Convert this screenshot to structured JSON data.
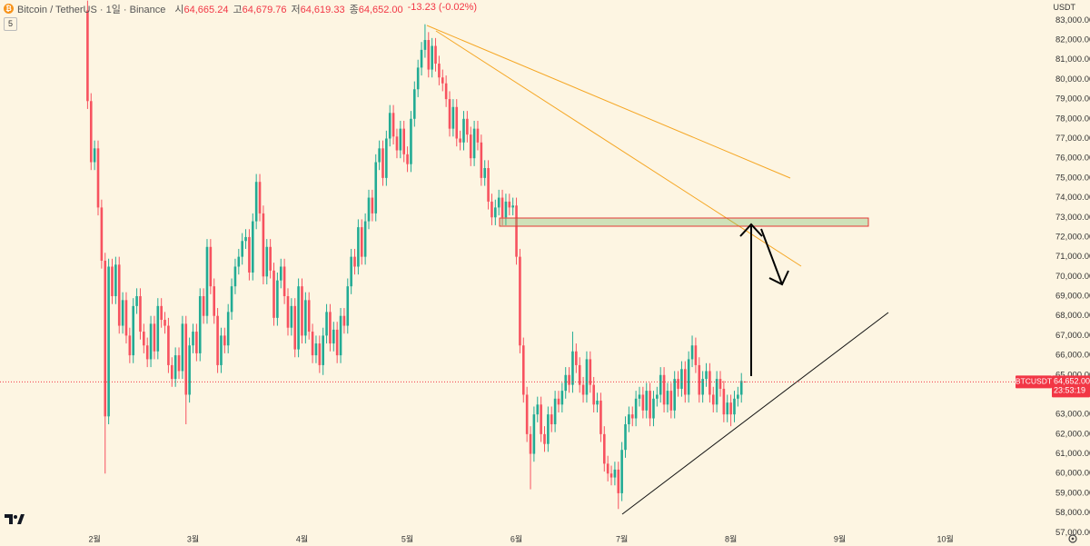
{
  "header": {
    "title": "Bitcoin / TetherUS · 1일 · Binance",
    "ohlc": [
      {
        "label": "시",
        "value": "64,665.24"
      },
      {
        "label": "고",
        "value": "64,679.76"
      },
      {
        "label": "저",
        "value": "64,619.33"
      },
      {
        "label": "종",
        "value": "64,652.00"
      }
    ],
    "change": "-13.23 (-0.02%)",
    "badge": "5",
    "currency": "USDT"
  },
  "chart_data": {
    "type": "candlestick",
    "categories": [
      null,
      null,
      "2월",
      null,
      null,
      null,
      null,
      null,
      null,
      null,
      null,
      null,
      null,
      null,
      null,
      null,
      null,
      null,
      null,
      null,
      null,
      null,
      null,
      null,
      null,
      null,
      null,
      null,
      null,
      null,
      "3월",
      null,
      null,
      null,
      null,
      null,
      null,
      null,
      null,
      null,
      null,
      null,
      null,
      null,
      null,
      null,
      null,
      null,
      null,
      null,
      null,
      null,
      null,
      null,
      null,
      null,
      null,
      null,
      null,
      null,
      null,
      "4월",
      null,
      null,
      null,
      null,
      null,
      null,
      null,
      null,
      null,
      null,
      null,
      null,
      null,
      null,
      null,
      null,
      null,
      null,
      null,
      null,
      null,
      null,
      null,
      null,
      null,
      null,
      null,
      null,
      null,
      "5월",
      null,
      null,
      null,
      null,
      null,
      null,
      null,
      null,
      null,
      null,
      null,
      null,
      null,
      null,
      null,
      null,
      null,
      null,
      null,
      null,
      null,
      null,
      null,
      null,
      null,
      null,
      null,
      null,
      null,
      null,
      "6월",
      null,
      null,
      null,
      null,
      null,
      null,
      null,
      null,
      null,
      null,
      null,
      null,
      null,
      null,
      null,
      null,
      null,
      null,
      null,
      null,
      null,
      null,
      null,
      null,
      null,
      null,
      null,
      null,
      null,
      "7월",
      null,
      null,
      null,
      null,
      null,
      null,
      null,
      null,
      null,
      null,
      null,
      null,
      null,
      null,
      null,
      null,
      null,
      null,
      null,
      null,
      null,
      null,
      null,
      null,
      null,
      null,
      null,
      null,
      null,
      null,
      "8월",
      null,
      null,
      null,
      null,
      null,
      null,
      null,
      null,
      null,
      null,
      null,
      null,
      null,
      null,
      null,
      null,
      null,
      null,
      null,
      null,
      null,
      null,
      null,
      null,
      null,
      null,
      null,
      null,
      null,
      null,
      "9월",
      null,
      null,
      null,
      null,
      null,
      null,
      null,
      null,
      null,
      null,
      null,
      null,
      null,
      null,
      null,
      null,
      null,
      null,
      null,
      null,
      null,
      null,
      null,
      null,
      null,
      null,
      null,
      null,
      null,
      "10월"
    ],
    "open": [
      83500,
      78900,
      75800,
      76500,
      73500,
      70800,
      62900,
      70500,
      69000,
      70600,
      67500,
      68800,
      67000,
      66000,
      68500,
      69000,
      67200,
      66500,
      65800,
      67600,
      66200,
      68500,
      67800,
      67500,
      65500,
      64800,
      66000,
      65200,
      67600,
      64000,
      66500,
      67200,
      66100,
      69000,
      68000,
      71500,
      69500,
      68000,
      65500,
      67000,
      66500,
      68200,
      69500,
      70500,
      71000,
      71800,
      72000,
      70200,
      72800,
      74800,
      73200,
      70000,
      71500,
      70300,
      67900,
      69800,
      70500,
      69000,
      67400,
      68500,
      66300,
      69500,
      67000,
      68800,
      67200,
      66000,
      66600,
      65500,
      67000,
      68200,
      66600,
      67300,
      66000,
      68000,
      67500,
      69500,
      71000,
      70500,
      72500,
      71000,
      72800,
      74000,
      73200,
      75800,
      76500,
      75000,
      77000,
      78300,
      77100,
      76400,
      77500,
      76200,
      75700,
      78000,
      79500,
      80600,
      81500,
      82000,
      80500,
      81700,
      80800,
      80100,
      79800,
      79000,
      77500,
      78600,
      77000,
      76800,
      78000,
      77200,
      76000,
      77500,
      76800,
      75000,
      75500,
      73800,
      73000,
      73500,
      74000,
      73000,
      73800,
      73500,
      73600,
      71000,
      66500,
      64000,
      62000,
      61000,
      63000,
      63500,
      62000,
      61500,
      63000,
      62500,
      63800,
      63500,
      64200,
      65000,
      64500,
      66200,
      65500,
      64500,
      64000,
      65800,
      64500,
      63500,
      63700,
      62000,
      60500,
      60000,
      59800,
      60200,
      59000,
      61200,
      62500,
      63000,
      62800,
      63800,
      64000,
      63200,
      64200,
      62800,
      63800,
      64000,
      65000,
      63500,
      64200,
      63200,
      64800,
      64300,
      65300,
      64000,
      65800,
      66500,
      65500,
      64000,
      64800,
      65200,
      64000,
      63500,
      64800,
      64300,
      63000,
      63600,
      63000,
      63800,
      64000,
      64665.24,
      null,
      null,
      null,
      null,
      null,
      null,
      null,
      null,
      null,
      null,
      null,
      null,
      null,
      null,
      null,
      null,
      null,
      null,
      null,
      null,
      null,
      null,
      null,
      null,
      null,
      null,
      null,
      null,
      null,
      null,
      null,
      null,
      null,
      null,
      null,
      null,
      null,
      null,
      null,
      null,
      null,
      null,
      null,
      null,
      null,
      null,
      null,
      null,
      null,
      null,
      null,
      null,
      null,
      null,
      null,
      null,
      null
    ],
    "high": [
      84000,
      79300,
      76900,
      76900,
      73900,
      71200,
      70900,
      70900,
      71000,
      71000,
      69200,
      69200,
      67400,
      68900,
      69400,
      69400,
      67600,
      66900,
      68000,
      68000,
      68900,
      68900,
      68200,
      67900,
      65900,
      66400,
      66400,
      68000,
      68000,
      66900,
      67600,
      67600,
      69400,
      69400,
      71900,
      71900,
      69900,
      68400,
      67400,
      67400,
      68600,
      69900,
      70900,
      71400,
      72200,
      72400,
      72400,
      73200,
      75200,
      75200,
      73600,
      71900,
      71900,
      70700,
      70200,
      70900,
      70900,
      69400,
      68900,
      68900,
      69900,
      69900,
      69200,
      69200,
      67600,
      67000,
      67000,
      67400,
      68600,
      68600,
      67700,
      67700,
      68400,
      68400,
      69900,
      71400,
      71400,
      72900,
      72900,
      73200,
      74400,
      74400,
      76200,
      76900,
      76900,
      77400,
      78700,
      78700,
      77500,
      77900,
      77900,
      76600,
      78400,
      79900,
      81000,
      81900,
      82800,
      82400,
      82100,
      82100,
      81200,
      80500,
      80200,
      79400,
      79000,
      79000,
      77400,
      78400,
      78400,
      77600,
      77900,
      77900,
      77200,
      75900,
      75900,
      74200,
      73900,
      74400,
      74400,
      74200,
      74200,
      74000,
      74000,
      71400,
      66900,
      64400,
      62400,
      63400,
      63900,
      63900,
      62400,
      63400,
      63400,
      64200,
      64200,
      64600,
      65400,
      65400,
      67200,
      66600,
      65900,
      64900,
      66200,
      66200,
      64900,
      64100,
      64100,
      62400,
      60900,
      60400,
      60600,
      60600,
      61600,
      62900,
      63400,
      63400,
      64200,
      64400,
      64400,
      64600,
      64600,
      64200,
      64400,
      65400,
      65400,
      64600,
      64600,
      65200,
      65200,
      65700,
      65700,
      66200,
      67000,
      66900,
      65900,
      65200,
      65600,
      65600,
      64400,
      65200,
      65200,
      64700,
      64000,
      64000,
      64200,
      64400,
      65100,
      64679.76,
      null,
      null,
      null,
      null,
      null,
      null,
      null,
      null,
      null,
      null,
      null,
      null,
      null,
      null,
      null,
      null,
      null,
      null,
      null,
      null,
      null,
      null,
      null,
      null,
      null,
      null,
      null,
      null,
      null,
      null,
      null,
      null,
      null,
      null,
      null,
      null,
      null,
      null,
      null,
      null,
      null,
      null,
      null,
      null,
      null,
      null,
      null,
      null,
      null,
      null,
      null,
      null,
      null,
      null,
      null,
      null,
      null
    ],
    "low": [
      78500,
      75400,
      75400,
      73100,
      70400,
      60000,
      62500,
      68600,
      68600,
      67100,
      67100,
      66600,
      65600,
      65600,
      68100,
      66800,
      66100,
      65400,
      65400,
      65800,
      65800,
      67400,
      67100,
      65100,
      64400,
      64400,
      64800,
      64800,
      62500,
      63600,
      66100,
      65700,
      65700,
      67600,
      67600,
      69100,
      67600,
      65100,
      65100,
      66100,
      66100,
      67800,
      69100,
      70100,
      70600,
      71400,
      69800,
      69800,
      72400,
      72800,
      69600,
      69600,
      69900,
      67500,
      67500,
      69400,
      68600,
      67000,
      67000,
      65900,
      65900,
      66600,
      66600,
      66800,
      65600,
      65600,
      65100,
      65000,
      66600,
      66200,
      66200,
      65600,
      65600,
      67100,
      67100,
      69100,
      70100,
      70100,
      70600,
      70600,
      72400,
      72800,
      72800,
      75400,
      74600,
      74600,
      76600,
      76700,
      76000,
      76000,
      75800,
      75300,
      75300,
      77600,
      79100,
      80200,
      81100,
      80100,
      80100,
      80400,
      79700,
      79400,
      78600,
      77100,
      77100,
      76600,
      76400,
      76400,
      76800,
      75600,
      75600,
      76400,
      74600,
      74600,
      73400,
      72600,
      72600,
      73100,
      72600,
      72600,
      73100,
      73100,
      70600,
      66100,
      63600,
      61600,
      59200,
      60600,
      62600,
      61600,
      61100,
      61100,
      62100,
      62100,
      63100,
      63100,
      63800,
      64100,
      64100,
      65100,
      64100,
      63600,
      63600,
      64100,
      63100,
      63100,
      61600,
      60100,
      59600,
      59400,
      59400,
      58200,
      58600,
      60800,
      62100,
      62400,
      62400,
      63400,
      62800,
      62800,
      62400,
      62400,
      63400,
      63600,
      63100,
      63100,
      62800,
      62800,
      63900,
      63900,
      63600,
      63600,
      65400,
      65100,
      63600,
      63600,
      64400,
      63600,
      63100,
      63100,
      63900,
      62600,
      62600,
      62400,
      62600,
      63400,
      63600,
      64619.33,
      null,
      null,
      null,
      null,
      null,
      null,
      null,
      null,
      null,
      null,
      null,
      null,
      null,
      null,
      null,
      null,
      null,
      null,
      null,
      null,
      null,
      null,
      null,
      null,
      null,
      null,
      null,
      null,
      null,
      null,
      null,
      null,
      null,
      null,
      null,
      null,
      null,
      null,
      null,
      null,
      null,
      null,
      null,
      null,
      null,
      null,
      null,
      null,
      null,
      null,
      null,
      null,
      null,
      null,
      null,
      null,
      null
    ],
    "close": [
      78900,
      75800,
      76500,
      73500,
      70800,
      62900,
      70500,
      69000,
      70600,
      67500,
      68800,
      67000,
      66000,
      68500,
      69000,
      67200,
      66500,
      65800,
      67600,
      66200,
      68500,
      67800,
      67500,
      65500,
      64800,
      66000,
      65200,
      67600,
      64000,
      66500,
      67200,
      66100,
      69000,
      68000,
      71500,
      69500,
      68000,
      65500,
      67000,
      66500,
      68200,
      69500,
      70500,
      71000,
      71800,
      72000,
      70200,
      72800,
      74800,
      73200,
      70000,
      71500,
      70300,
      67900,
      69800,
      70500,
      69000,
      67400,
      68500,
      66300,
      69500,
      67000,
      68800,
      67200,
      66000,
      66600,
      65500,
      67000,
      68200,
      66600,
      67300,
      66000,
      68000,
      67500,
      69500,
      71000,
      70500,
      72500,
      71000,
      72800,
      74000,
      73200,
      75800,
      76500,
      75000,
      77000,
      78300,
      77100,
      76400,
      77500,
      76200,
      75700,
      78000,
      79500,
      80600,
      81500,
      82000,
      80500,
      81700,
      80800,
      80100,
      79800,
      79000,
      77500,
      78600,
      77000,
      76800,
      78000,
      77200,
      76000,
      77500,
      76800,
      75000,
      75500,
      73800,
      73000,
      73500,
      74000,
      73000,
      73800,
      73500,
      73600,
      71000,
      66500,
      64000,
      62000,
      61000,
      63000,
      63500,
      62000,
      61500,
      63000,
      62500,
      63800,
      63500,
      64200,
      65000,
      64500,
      66200,
      65500,
      64500,
      64000,
      65800,
      64500,
      63500,
      63700,
      62000,
      60500,
      60000,
      59800,
      60200,
      59000,
      61200,
      62500,
      63000,
      62800,
      63800,
      64000,
      63200,
      64200,
      62800,
      63800,
      64000,
      65000,
      63500,
      64200,
      63200,
      64800,
      64300,
      65300,
      64000,
      65800,
      66500,
      65500,
      64000,
      64800,
      65200,
      64000,
      63500,
      64800,
      64300,
      63000,
      63600,
      63000,
      63800,
      64000,
      64700,
      64652,
      null,
      null,
      null,
      null,
      null,
      null,
      null,
      null,
      null,
      null,
      null,
      null,
      null,
      null,
      null,
      null,
      null,
      null,
      null,
      null,
      null,
      null,
      null,
      null,
      null,
      null,
      null,
      null,
      null,
      null,
      null,
      null,
      null,
      null,
      null,
      null,
      null,
      null,
      null,
      null,
      null,
      null,
      null,
      null,
      null,
      null,
      null,
      null,
      null,
      null,
      null,
      null,
      null,
      null,
      null,
      null,
      null
    ],
    "ylim": [
      57060,
      84030
    ],
    "yticks": [
      {
        "value": 57000,
        "label": "57,000.00"
      },
      {
        "value": 58000,
        "label": "58,000.00"
      },
      {
        "value": 59000,
        "label": "59,000.00"
      },
      {
        "value": 60000,
        "label": "60,000.00"
      },
      {
        "value": 61000,
        "label": "61,000.00"
      },
      {
        "value": 62000,
        "label": "62,000.00"
      },
      {
        "value": 63000,
        "label": "63,000.00"
      },
      {
        "value": 65000,
        "label": "65,000.00"
      },
      {
        "value": 66000,
        "label": "66,000.00"
      },
      {
        "value": 67000,
        "label": "67,000.00"
      },
      {
        "value": 68000,
        "label": "68,000.00"
      },
      {
        "value": 69000,
        "label": "69,000.00"
      },
      {
        "value": 70000,
        "label": "70,000.00"
      },
      {
        "value": 71000,
        "label": "71,000.00"
      },
      {
        "value": 72000,
        "label": "72,000.00"
      },
      {
        "value": 73000,
        "label": "73,000.00"
      },
      {
        "value": 74000,
        "label": "74,000.00"
      },
      {
        "value": 75000,
        "label": "75,000.00"
      },
      {
        "value": 76000,
        "label": "76,000.00"
      },
      {
        "value": 77000,
        "label": "77,000.00"
      },
      {
        "value": 78000,
        "label": "78,000.00"
      },
      {
        "value": 79000,
        "label": "79,000.00"
      },
      {
        "value": 80000,
        "label": "80,000.00"
      },
      {
        "value": 81000,
        "label": "81,000.00"
      },
      {
        "value": 82000,
        "label": "82,000.00"
      },
      {
        "value": 83000,
        "label": "83,000.00"
      }
    ],
    "grid": false,
    "up_color": "#22ab94",
    "down_color": "#f7525f",
    "last_price": {
      "value": 64652,
      "label": "64,652.00"
    },
    "symbol": "BTCUSDT",
    "countdown": "23:53:19"
  }
}
